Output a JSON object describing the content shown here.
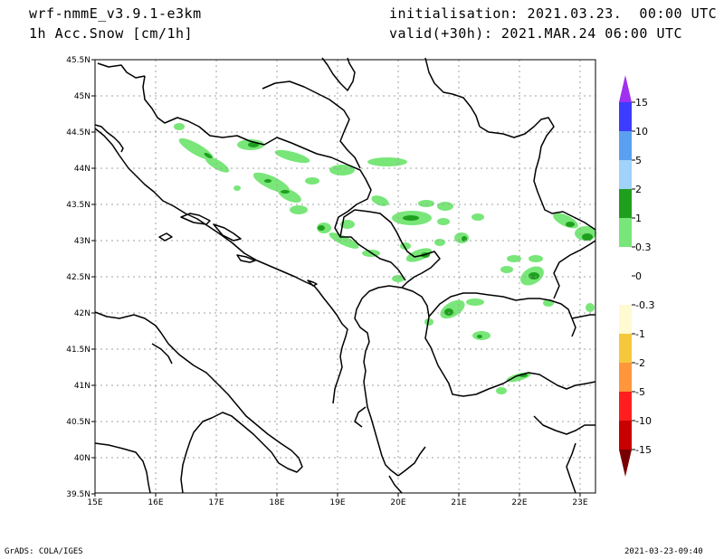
{
  "header": {
    "model": "wrf-nmmE_v3.9.1-e3km",
    "field": "1h Acc.Snow [cm/1h]",
    "init": "initialisation: 2021.03.23.  00:00 UTC",
    "valid": "valid(+30h): 2021.MAR.24 06:00 UTC"
  },
  "axes": {
    "lat_labels": [
      "45.5N",
      "45N",
      "44.5N",
      "44N",
      "43.5N",
      "43N",
      "42.5N",
      "42N",
      "41.5N",
      "41N",
      "40.5N",
      "40N",
      "39.5N"
    ],
    "lon_labels": [
      "15E",
      "16E",
      "17E",
      "18E",
      "19E",
      "20E",
      "21E",
      "22E",
      "23E"
    ]
  },
  "colorbar": {
    "labels": [
      "15",
      "10",
      "5",
      "2",
      "1",
      "0.3",
      "0",
      "-0.3",
      "-1",
      "-2",
      "-5",
      "-10",
      "-15"
    ],
    "colors": [
      "#3c3cff",
      "#5aa0f0",
      "#a0d2fa",
      "#1ea01e",
      "#78e678",
      "#ffffff",
      "#ffffff",
      "#fffad2",
      "#f5c83c",
      "#ff963c",
      "#ff1e1e",
      "#c80000",
      "#a00000"
    ],
    "top_arrow_color": "#a030f0",
    "bottom_arrow_color": "#780000"
  },
  "footer": {
    "left": "GrADS: COLA/IGES",
    "right": "2021-03-23-09:40"
  }
}
